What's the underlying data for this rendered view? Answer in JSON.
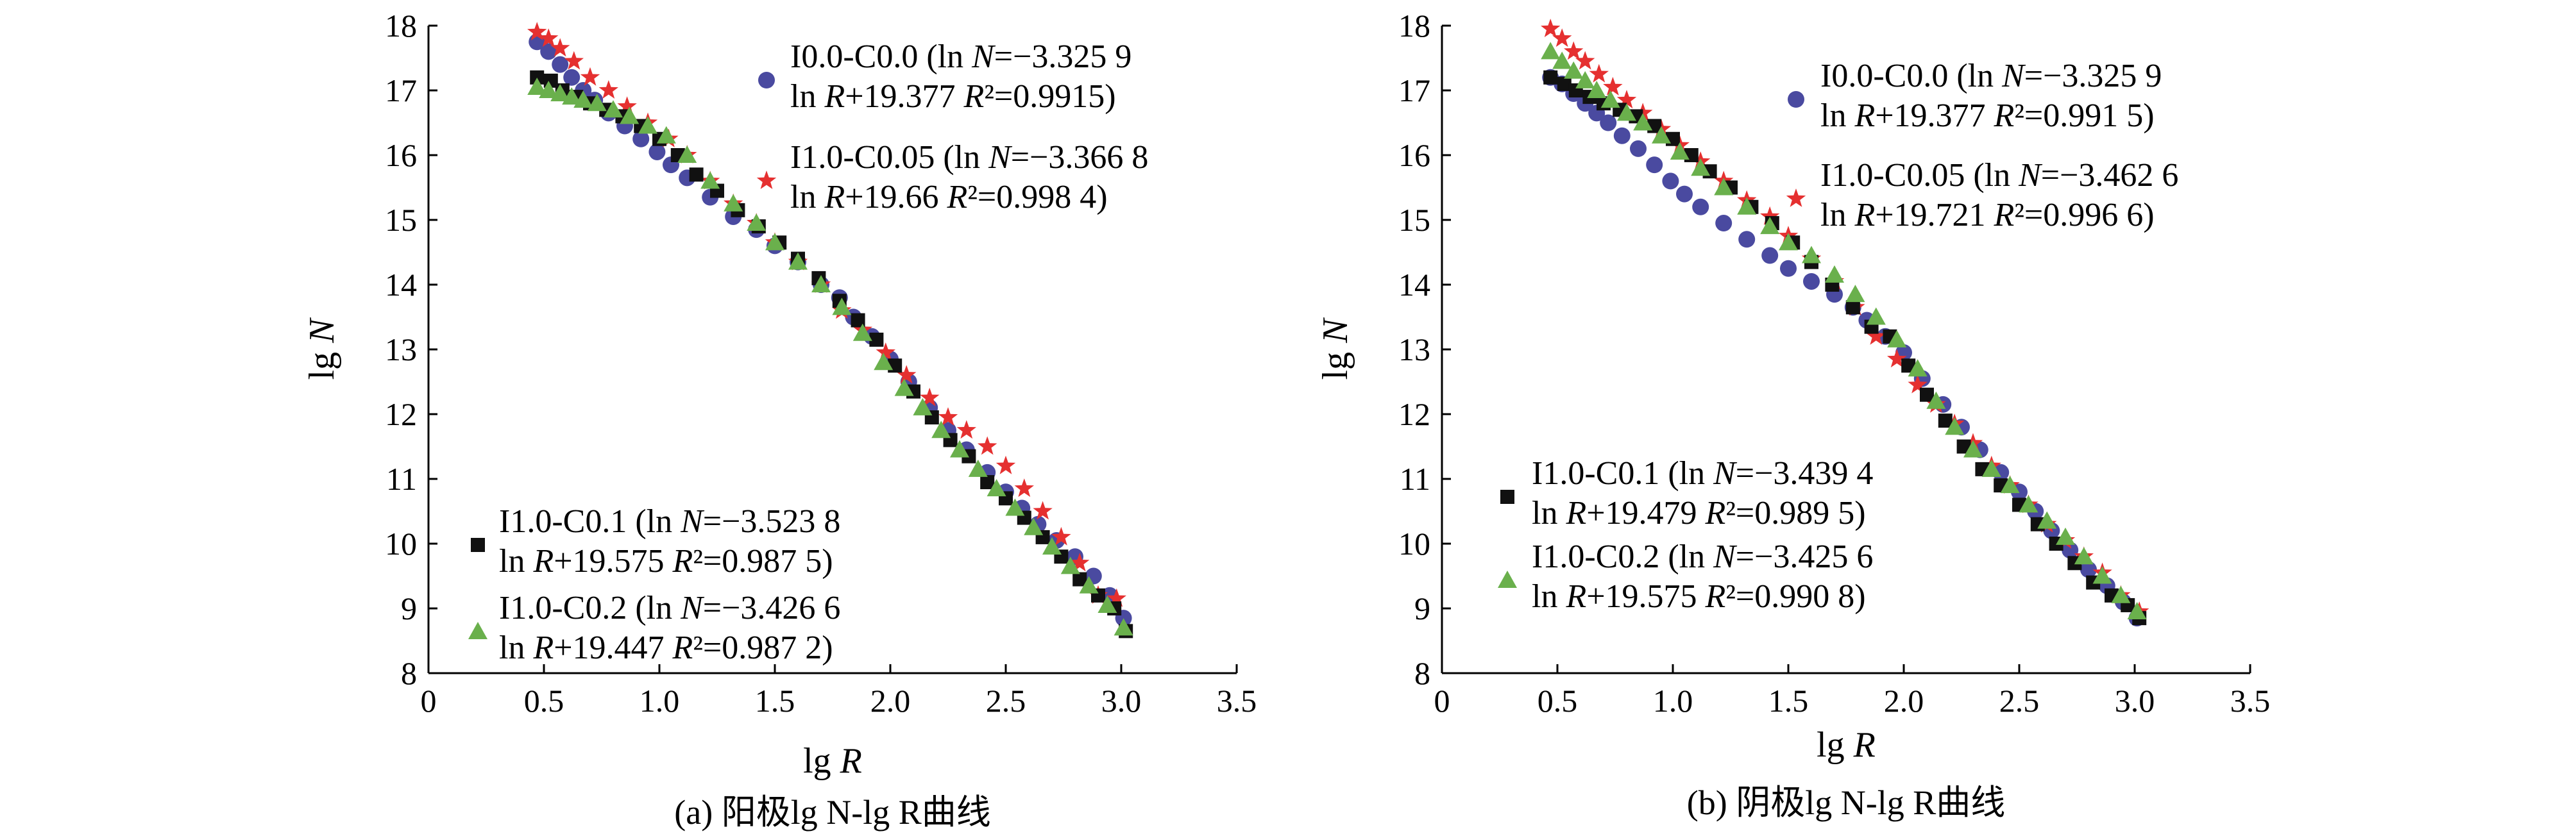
{
  "chart_data": [
    {
      "type": "scatter",
      "caption": "(a) 阳极lg N-lg R曲线",
      "xlabel": "lg R",
      "ylabel": "lg N",
      "xlim": [
        0,
        3.5
      ],
      "ylim": [
        8,
        18
      ],
      "xticks": [
        "0",
        "0.5",
        "1.0",
        "1.5",
        "2.0",
        "2.5",
        "3.0",
        "3.5"
      ],
      "yticks": [
        "8",
        "9",
        "10",
        "11",
        "12",
        "13",
        "14",
        "15",
        "16",
        "17",
        "18"
      ],
      "series": [
        {
          "name": "I0.0-C0.0",
          "legend_lines": [
            "I0.0-C0.0 (ln N=−3.325 9",
            "ln R+19.377 R²=0.9915)"
          ],
          "marker": "circle",
          "color": "#4a4aa0",
          "x": [
            0.47,
            0.52,
            0.57,
            0.62,
            0.67,
            0.72,
            0.78,
            0.85,
            0.92,
            0.99,
            1.05,
            1.12,
            1.22,
            1.32,
            1.42,
            1.5,
            1.6,
            1.7,
            1.78,
            1.84,
            1.92,
            2.0,
            2.08,
            2.17,
            2.25,
            2.33,
            2.42,
            2.5,
            2.57,
            2.64,
            2.72,
            2.8,
            2.88,
            2.95,
            3.01
          ],
          "y": [
            17.75,
            17.6,
            17.4,
            17.2,
            17.0,
            16.85,
            16.65,
            16.45,
            16.25,
            16.05,
            15.85,
            15.65,
            15.35,
            15.05,
            14.85,
            14.6,
            14.35,
            14.0,
            13.8,
            13.5,
            13.2,
            12.85,
            12.5,
            12.1,
            11.75,
            11.45,
            11.1,
            10.8,
            10.55,
            10.3,
            10.05,
            9.8,
            9.5,
            9.2,
            8.85
          ]
        },
        {
          "name": "I1.0-C0.05",
          "legend_lines": [
            "I1.0-C0.05 (ln N=−3.366 8",
            "ln R+19.66 R²=0.998 4)"
          ],
          "marker": "star",
          "color": "#e53030",
          "x": [
            0.47,
            0.52,
            0.57,
            0.63,
            0.7,
            0.78,
            0.86,
            0.95,
            1.04,
            1.12,
            1.22,
            1.32,
            1.42,
            1.5,
            1.6,
            1.7,
            1.79,
            1.88,
            1.98,
            2.07,
            2.17,
            2.25,
            2.33,
            2.42,
            2.5,
            2.58,
            2.66,
            2.74,
            2.82,
            2.9,
            2.98
          ],
          "y": [
            17.9,
            17.8,
            17.65,
            17.45,
            17.2,
            17.0,
            16.75,
            16.5,
            16.25,
            16.0,
            15.6,
            15.25,
            14.95,
            14.65,
            14.35,
            14.0,
            13.6,
            13.3,
            12.95,
            12.6,
            12.25,
            11.95,
            11.75,
            11.5,
            11.2,
            10.85,
            10.5,
            10.1,
            9.7,
            9.2,
            9.15
          ]
        },
        {
          "name": "I1.0-C0.1",
          "legend_lines": [
            "I1.0-C0.1 (ln N=−3.523 8",
            "ln R+19.575 R²=0.987 5)"
          ],
          "marker": "square",
          "color": "#111111",
          "x": [
            0.47,
            0.53,
            0.58,
            0.64,
            0.7,
            0.77,
            0.84,
            0.92,
            1.0,
            1.08,
            1.16,
            1.25,
            1.34,
            1.43,
            1.52,
            1.6,
            1.69,
            1.78,
            1.86,
            1.94,
            2.02,
            2.1,
            2.18,
            2.26,
            2.34,
            2.42,
            2.5,
            2.58,
            2.66,
            2.74,
            2.82,
            2.9,
            2.97,
            3.02
          ],
          "y": [
            17.2,
            17.15,
            17.0,
            16.9,
            16.8,
            16.7,
            16.6,
            16.45,
            16.25,
            16.0,
            15.7,
            15.45,
            15.15,
            14.9,
            14.65,
            14.4,
            14.1,
            13.75,
            13.45,
            13.15,
            12.75,
            12.35,
            11.95,
            11.6,
            11.35,
            10.95,
            10.7,
            10.4,
            10.1,
            9.8,
            9.45,
            9.2,
            9.0,
            8.65
          ]
        },
        {
          "name": "I1.0-C0.2",
          "legend_lines": [
            "I1.0-C0.2 (ln N=−3.426 6",
            "ln R+19.447 R²=0.987 2)"
          ],
          "marker": "triangle",
          "color": "#6ab04c",
          "x": [
            0.47,
            0.52,
            0.57,
            0.62,
            0.67,
            0.73,
            0.8,
            0.87,
            0.95,
            1.03,
            1.12,
            1.22,
            1.32,
            1.42,
            1.5,
            1.6,
            1.7,
            1.79,
            1.88,
            1.97,
            2.06,
            2.14,
            2.22,
            2.3,
            2.38,
            2.46,
            2.54,
            2.62,
            2.7,
            2.78,
            2.86,
            2.94,
            3.01
          ],
          "y": [
            17.05,
            17.0,
            16.95,
            16.9,
            16.85,
            16.8,
            16.7,
            16.6,
            16.45,
            16.3,
            16.0,
            15.6,
            15.25,
            14.95,
            14.65,
            14.35,
            14.0,
            13.65,
            13.25,
            12.8,
            12.4,
            12.1,
            11.75,
            11.45,
            11.15,
            10.85,
            10.55,
            10.25,
            9.95,
            9.65,
            9.35,
            9.05,
            8.7
          ]
        }
      ]
    },
    {
      "type": "scatter",
      "caption": "(b) 阴极lg N-lg R曲线",
      "xlabel": "lg R",
      "ylabel": "lg N",
      "xlim": [
        0,
        3.5
      ],
      "ylim": [
        8,
        18
      ],
      "xticks": [
        "0",
        "0.5",
        "1.0",
        "1.5",
        "2.0",
        "2.5",
        "3.0",
        "3.5"
      ],
      "yticks": [
        "8",
        "9",
        "10",
        "11",
        "12",
        "13",
        "14",
        "15",
        "16",
        "17",
        "18"
      ],
      "series": [
        {
          "name": "I0.0-C0.0",
          "legend_lines": [
            "I0.0-C0.0 (ln N=−3.325 9",
            "ln R+19.377 R²=0.991 5)"
          ],
          "marker": "circle",
          "color": "#4a4aa0",
          "x": [
            0.47,
            0.52,
            0.57,
            0.62,
            0.67,
            0.72,
            0.78,
            0.85,
            0.92,
            0.99,
            1.05,
            1.12,
            1.22,
            1.32,
            1.42,
            1.5,
            1.6,
            1.7,
            1.78,
            1.84,
            1.92,
            2.0,
            2.08,
            2.17,
            2.25,
            2.33,
            2.42,
            2.5,
            2.57,
            2.64,
            2.72,
            2.8,
            2.88,
            2.95,
            3.01
          ],
          "y": [
            17.2,
            17.1,
            16.95,
            16.8,
            16.65,
            16.5,
            16.3,
            16.1,
            15.85,
            15.6,
            15.4,
            15.2,
            14.95,
            14.7,
            14.45,
            14.25,
            14.05,
            13.85,
            13.65,
            13.45,
            13.2,
            12.95,
            12.55,
            12.15,
            11.8,
            11.45,
            11.1,
            10.8,
            10.5,
            10.2,
            9.9,
            9.6,
            9.35,
            9.1,
            8.85
          ]
        },
        {
          "name": "I1.0-C0.05",
          "legend_lines": [
            "I1.0-C0.05 (ln N=−3.462 6",
            "ln R+19.721 R²=0.996 6)"
          ],
          "marker": "star",
          "color": "#e53030",
          "x": [
            0.47,
            0.52,
            0.57,
            0.62,
            0.68,
            0.74,
            0.8,
            0.87,
            0.95,
            1.03,
            1.12,
            1.22,
            1.32,
            1.42,
            1.5,
            1.6,
            1.7,
            1.79,
            1.88,
            1.97,
            2.06,
            2.14,
            2.22,
            2.3,
            2.38,
            2.46,
            2.54,
            2.62,
            2.7,
            2.78,
            2.86,
            2.94,
            3.02
          ],
          "y": [
            17.95,
            17.8,
            17.6,
            17.45,
            17.25,
            17.05,
            16.85,
            16.65,
            16.4,
            16.15,
            15.9,
            15.6,
            15.3,
            15.05,
            14.75,
            14.4,
            14.05,
            13.65,
            13.2,
            12.85,
            12.45,
            12.15,
            11.85,
            11.55,
            11.2,
            10.9,
            10.6,
            10.3,
            10.05,
            9.8,
            9.55,
            9.2,
            8.95
          ]
        },
        {
          "name": "I1.0-C0.1",
          "legend_lines": [
            "I1.0-C0.1 (ln N=−3.439 4",
            "ln R+19.479 R²=0.989 5)"
          ],
          "marker": "square",
          "color": "#111111",
          "x": [
            0.47,
            0.53,
            0.58,
            0.64,
            0.7,
            0.77,
            0.84,
            0.92,
            1.0,
            1.08,
            1.16,
            1.25,
            1.34,
            1.43,
            1.52,
            1.6,
            1.69,
            1.78,
            1.86,
            1.94,
            2.02,
            2.1,
            2.18,
            2.26,
            2.34,
            2.42,
            2.5,
            2.58,
            2.66,
            2.74,
            2.82,
            2.9,
            2.97,
            3.02
          ],
          "y": [
            17.2,
            17.1,
            17.0,
            16.9,
            16.8,
            16.7,
            16.6,
            16.45,
            16.25,
            16.0,
            15.75,
            15.5,
            15.2,
            14.95,
            14.65,
            14.35,
            14.0,
            13.65,
            13.35,
            13.2,
            12.75,
            12.3,
            11.9,
            11.5,
            11.15,
            10.9,
            10.6,
            10.3,
            10.0,
            9.7,
            9.4,
            9.2,
            9.05,
            8.85
          ]
        },
        {
          "name": "I1.0-C0.2",
          "legend_lines": [
            "I1.0-C0.2 (ln N=−3.425 6",
            "ln R+19.575 R²=0.990 8)"
          ],
          "marker": "triangle",
          "color": "#6ab04c",
          "x": [
            0.47,
            0.52,
            0.57,
            0.62,
            0.67,
            0.73,
            0.8,
            0.87,
            0.95,
            1.03,
            1.12,
            1.22,
            1.32,
            1.42,
            1.5,
            1.6,
            1.7,
            1.79,
            1.88,
            1.97,
            2.06,
            2.14,
            2.22,
            2.3,
            2.38,
            2.46,
            2.54,
            2.62,
            2.7,
            2.78,
            2.86,
            2.94,
            3.01
          ],
          "y": [
            17.6,
            17.45,
            17.3,
            17.15,
            17.0,
            16.85,
            16.65,
            16.5,
            16.3,
            16.05,
            15.8,
            15.5,
            15.2,
            14.9,
            14.65,
            14.45,
            14.15,
            13.85,
            13.5,
            13.15,
            12.7,
            12.2,
            11.8,
            11.45,
            11.15,
            10.9,
            10.6,
            10.35,
            10.1,
            9.8,
            9.5,
            9.2,
            8.95
          ]
        }
      ]
    }
  ]
}
